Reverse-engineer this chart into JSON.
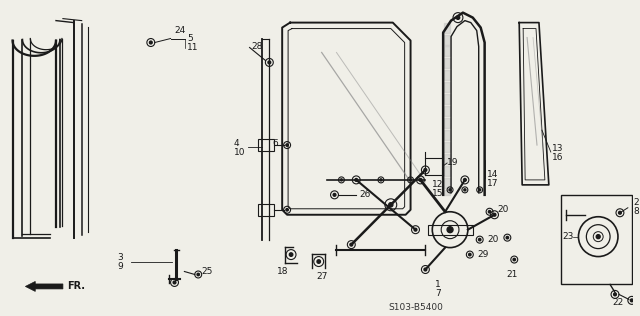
{
  "bg_color": "#f0efe8",
  "part_code": "S103-B5400",
  "fr_label": "FR.",
  "fig_width": 6.4,
  "fig_height": 3.16,
  "dpi": 100,
  "line_color": "#1a1a1a"
}
